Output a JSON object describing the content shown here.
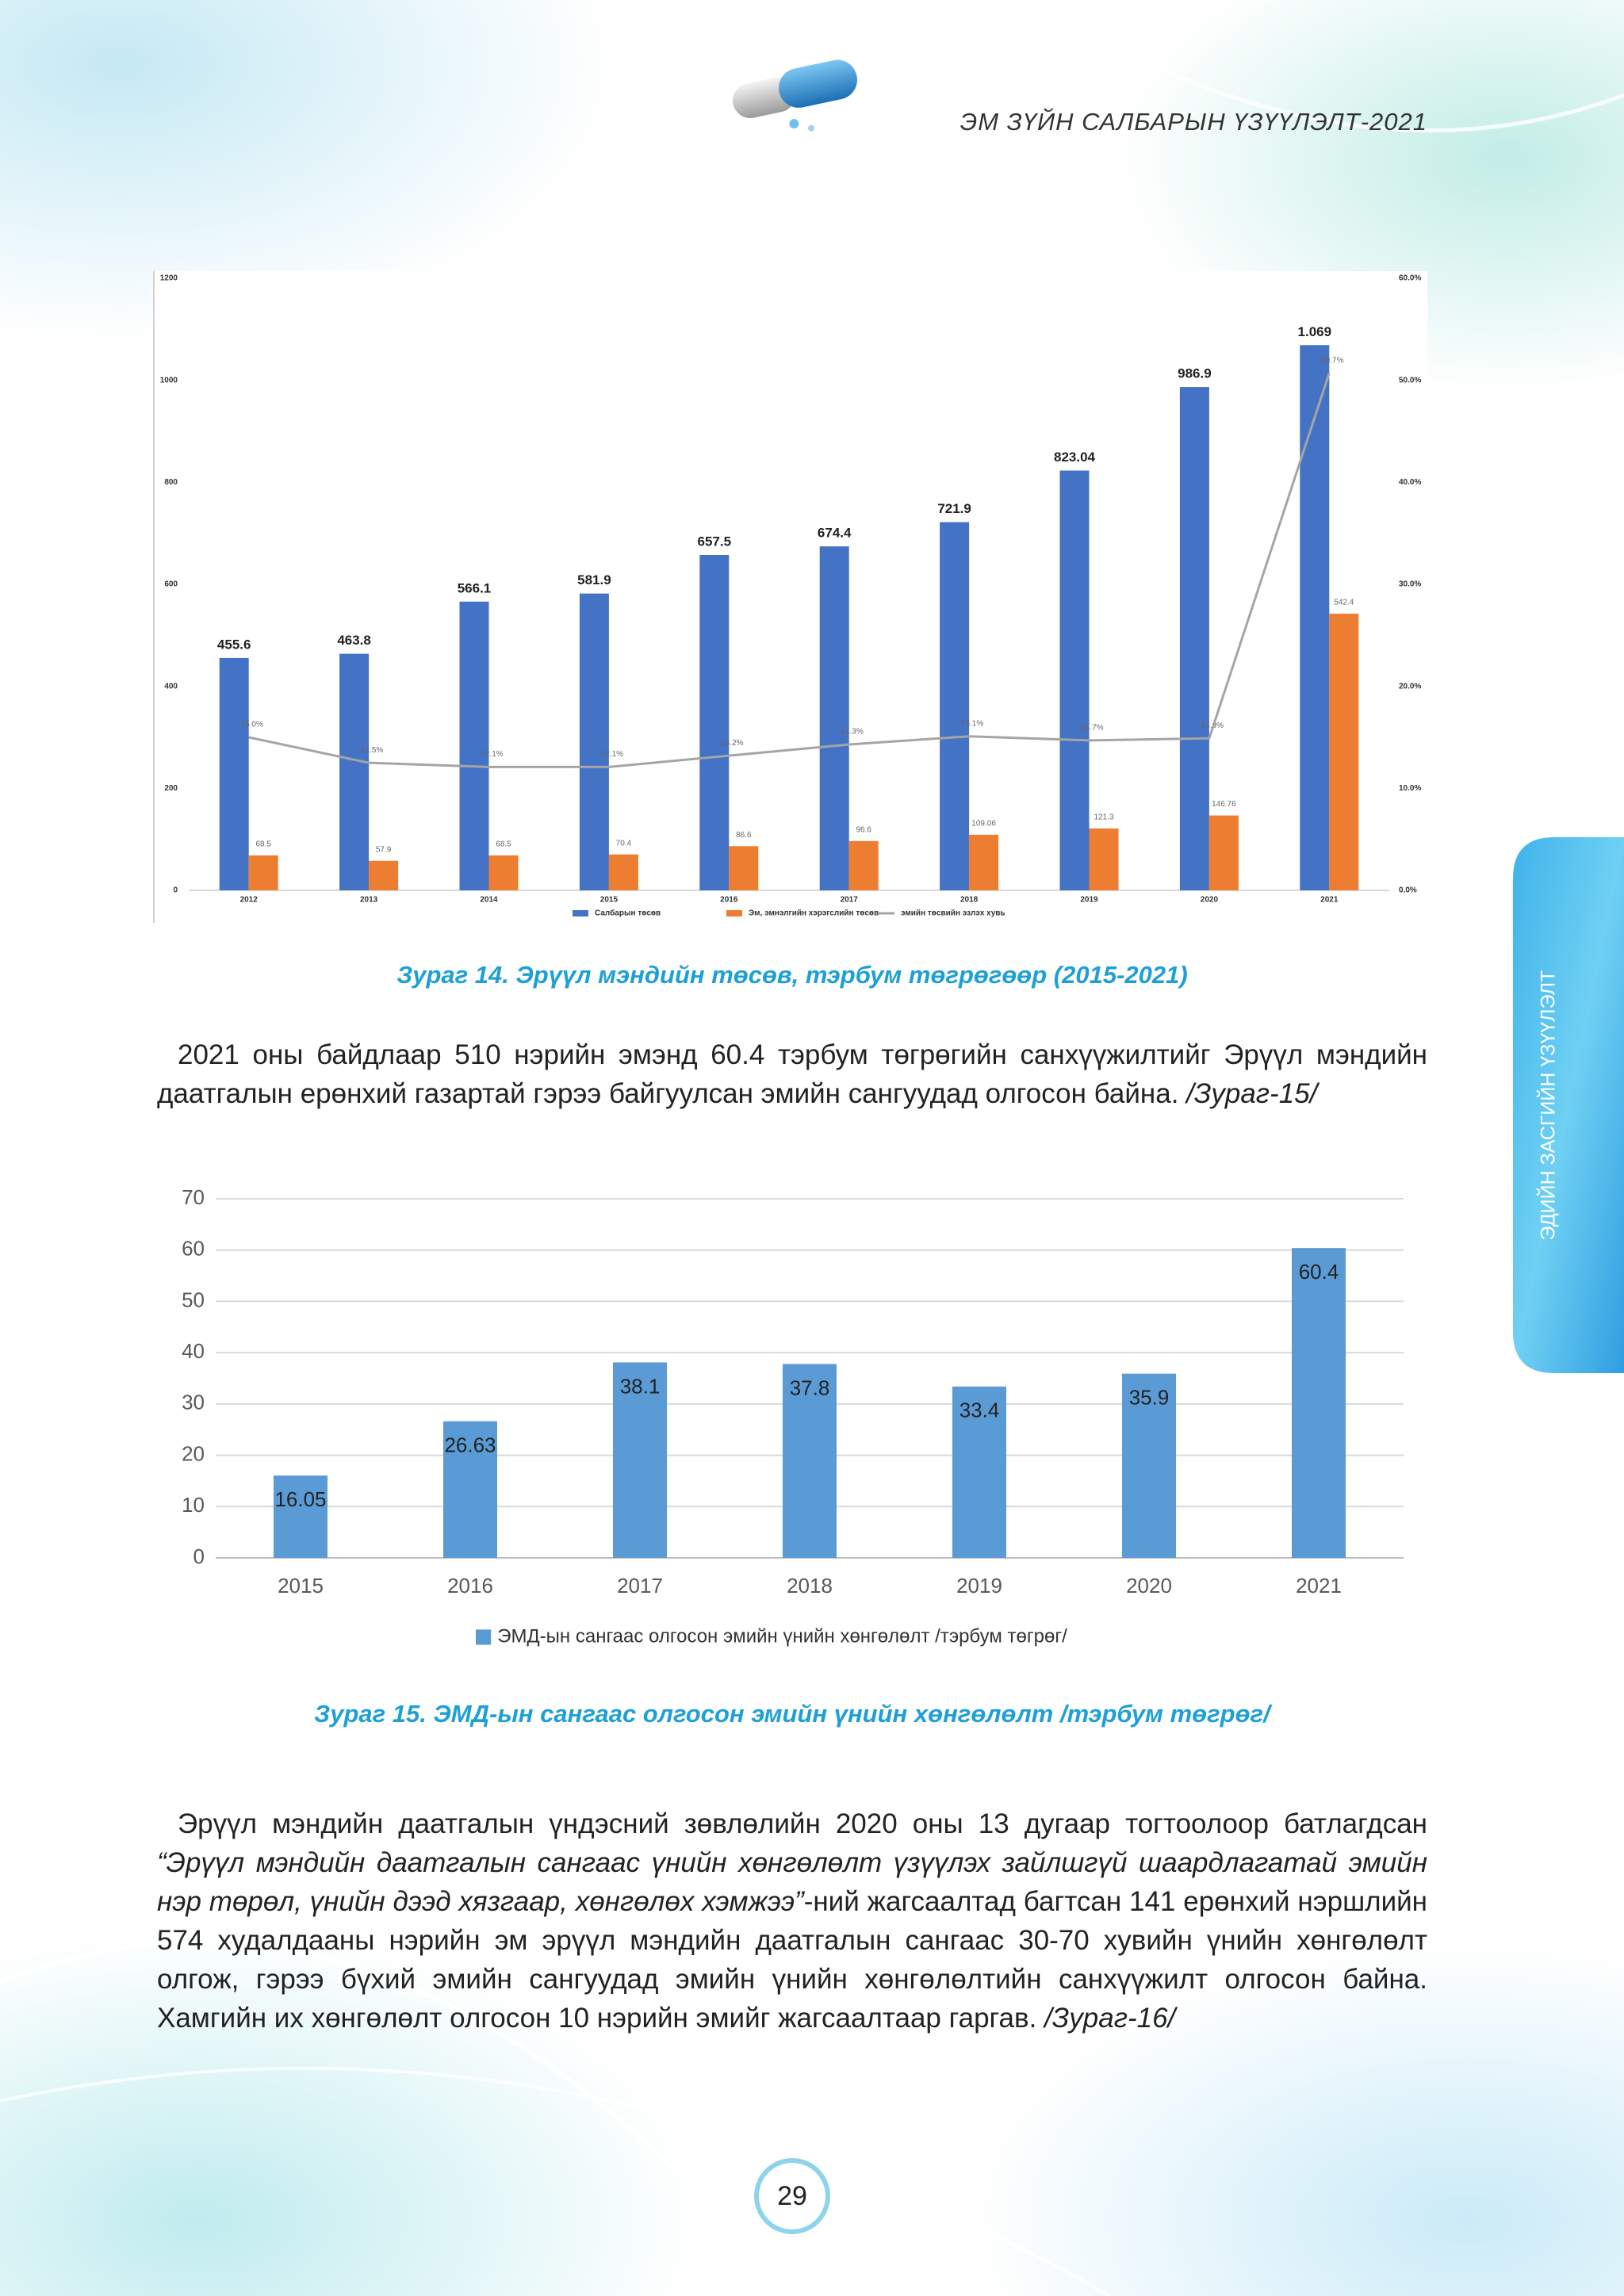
{
  "header": {
    "title": "ЭМ ЗҮЙН САЛБАРЫН ҮЗҮҮЛЭЛТ-2021"
  },
  "side_tab": {
    "label": "ЭДИЙН ЗАСГИЙН ҮЗҮҮЛЭЛТ"
  },
  "chart_data": [
    {
      "type": "bar",
      "categories": [
        "2012",
        "2013",
        "2014",
        "2015",
        "2016",
        "2017",
        "2018",
        "2019",
        "2020",
        "2021"
      ],
      "series": [
        {
          "name": "Салбарын төсөв",
          "color": "#4472c4",
          "values": [
            455.6,
            463.8,
            566.1,
            581.9,
            657.5,
            674.4,
            721.9,
            823.04,
            986.9,
            1069
          ],
          "value_labels": [
            "455.6",
            "463.8",
            "566.1",
            "581.9",
            "657.5",
            "674.4",
            "721.9",
            "823.04",
            "986.9",
            "1.069"
          ]
        },
        {
          "name": "Эм, эмнэлгийн хэрэгслийн төсөв",
          "color": "#ed7d31",
          "values": [
            68.5,
            57.9,
            68.5,
            70.4,
            86.6,
            96.6,
            109.06,
            121.3,
            146.76,
            542.4
          ]
        },
        {
          "name": "эмийн төсвийн эзлэх хувь",
          "color": "#a5a5a5",
          "type": "line",
          "axis": "y2",
          "values": [
            15.0,
            12.5,
            12.1,
            12.1,
            13.2,
            14.3,
            15.1,
            14.7,
            14.9,
            50.7
          ],
          "value_labels": [
            "15.0%",
            "12.5%",
            "12.1%",
            "12.1%",
            "13.2%",
            "14.3%",
            "15.1%",
            "14.7%",
            "14.9%",
            "50.7%"
          ]
        }
      ],
      "ylim": [
        0,
        1200
      ],
      "yticks": [
        0,
        200,
        400,
        600,
        800,
        1000,
        1200
      ],
      "y2lim": [
        0,
        60
      ],
      "y2ticks": [
        {
          "value": 0,
          "label": "0.0%"
        },
        {
          "value": 10,
          "label": "10.0%"
        },
        {
          "value": 20,
          "label": "20.0%"
        },
        {
          "value": 30,
          "label": "30.0%"
        },
        {
          "value": 40,
          "label": "40.0%"
        },
        {
          "value": 50,
          "label": "50.0%"
        },
        {
          "value": 60,
          "label": "60.0%"
        }
      ],
      "grid": false,
      "legend": "bottom"
    },
    {
      "type": "bar",
      "categories": [
        "2015",
        "2016",
        "2017",
        "2018",
        "2019",
        "2020",
        "2021"
      ],
      "series": [
        {
          "name": "ЭМД-ын сангаас олгосон эмийн үнийн хөнгөлөлт /тэрбум төгрөг/",
          "color": "#5b9bd5",
          "values": [
            16.05,
            26.63,
            38.1,
            37.8,
            33.4,
            35.9,
            60.4
          ]
        }
      ],
      "ylim": [
        0,
        70
      ],
      "yticks": [
        0,
        10,
        20,
        30,
        40,
        50,
        60,
        70
      ],
      "grid": true,
      "legend": "bottom"
    }
  ],
  "captions": [
    "Зураг 14. Эрүүл мэндийн төсөв, тэрбум төгрөгөөр (2015-2021)",
    "Зураг 15. ЭМД-ын сангаас олгосон эмийн үнийн хөнгөлөлт /тэрбум төгрөг/"
  ],
  "paragraph_1": {
    "text": "2021 оны байдлаар 510 нэрийн эмэнд 60.4 тэрбум төгрөгийн санхүүжилтийг Эрүүл мэндийн даатгалын ерөнхий газартай гэрээ байгуулсан эмийн сангуудад олгосон байна.",
    "reference": "/Зураг-15/"
  },
  "paragraph_2": {
    "text_before": "Эрүүл мэндийн даатгалын үндэсний зөвлөлийн 2020 оны 13 дугаар тогтоолоор батлагдсан",
    "quote": "“Эрүүл мэндийн даатгалын сангаас үнийн хөнгөлөлт үзүүлэх зайлшгүй шаардлагатай эмийн нэр төрөл, үнийн дээд хязгаар, хөнгөлөх хэмжээ”",
    "text_after": "-ний жагсаалтад багтсан 141 ерөнхий нэршлийн 574 худалдааны нэрийн эм эрүүл мэндийн даатгалын сангаас 30-70 хувийн үнийн хөнгөлөлт олгож, гэрээ бүхий эмийн сангуудад эмийн үнийн хөнгөлөлтийн санхүүжилт олгосон байна. Хамгийн их хөнгөлөлт олгосон 10 нэрийн эмийг жагсаалтаар гаргав.",
    "reference": "/Зураг-16/"
  },
  "page_number": "29"
}
